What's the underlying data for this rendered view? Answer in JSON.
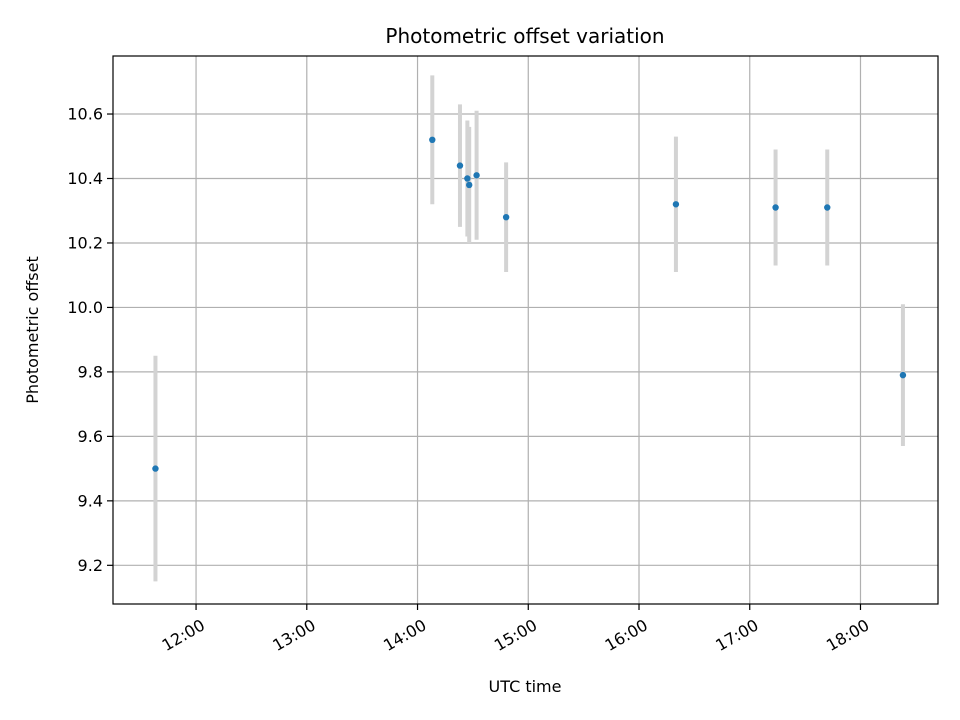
{
  "chart_data": {
    "type": "scatter",
    "title": "Photometric offset variation",
    "xlabel": "UTC time",
    "ylabel": "Photometric offset",
    "x_ticks": [
      "12:00",
      "13:00",
      "14:00",
      "15:00",
      "16:00",
      "17:00",
      "18:00"
    ],
    "y_ticks": [
      "9.2",
      "9.4",
      "9.6",
      "9.8",
      "10.0",
      "10.2",
      "10.4",
      "10.6"
    ],
    "xlim": [
      "11:15",
      "18:42"
    ],
    "ylim": [
      9.08,
      10.78
    ],
    "grid": true,
    "points": [
      {
        "x": "11:38",
        "y": 9.5,
        "err": 0.35
      },
      {
        "x": "14:08",
        "y": 10.52,
        "err": 0.2
      },
      {
        "x": "14:23",
        "y": 10.44,
        "err": 0.19
      },
      {
        "x": "14:27",
        "y": 10.4,
        "err": 0.18
      },
      {
        "x": "14:28",
        "y": 10.38,
        "err": 0.18
      },
      {
        "x": "14:32",
        "y": 10.41,
        "err": 0.2
      },
      {
        "x": "14:48",
        "y": 10.28,
        "err": 0.17
      },
      {
        "x": "16:20",
        "y": 10.32,
        "err": 0.21
      },
      {
        "x": "17:14",
        "y": 10.31,
        "err": 0.18
      },
      {
        "x": "17:42",
        "y": 10.31,
        "err": 0.18
      },
      {
        "x": "18:23",
        "y": 9.79,
        "err": 0.22
      }
    ],
    "colors": {
      "marker": "#1f77b4",
      "errorbar": "#d3d3d3",
      "grid": "#b0b0b0"
    }
  }
}
